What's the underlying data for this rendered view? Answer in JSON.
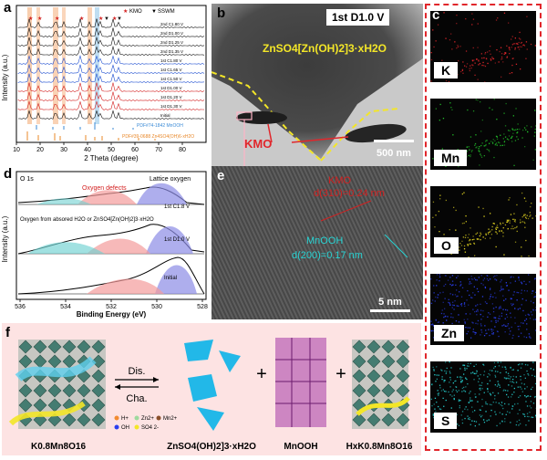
{
  "panels": {
    "a": {
      "label": "a",
      "ylabel": "Intensity (a.u.)",
      "xlabel": "2 Theta (degree)",
      "xticks": [
        "10",
        "20",
        "30",
        "40",
        "50",
        "60",
        "70",
        "80"
      ],
      "legend_kmo": "KMO",
      "legend_sswm": "SSWM",
      "curve_labels": [
        "2nd C1.80 V",
        "2nd D1.00 V",
        "2nd D1.25 V",
        "2nd D1.35 V",
        "1st C1.80 V",
        "1st C1.65 V",
        "1st C1.50 V",
        "1st D1.00 V",
        "1st D1.20 V",
        "1st D1.30 V",
        "Initial"
      ],
      "ref_mnooh": "PDF#74-1842 MnOOH",
      "ref_sswm": "PDF#39-0688 Zn4SO4(OH)6·xH2O",
      "colors": {
        "black": "#111111",
        "blue": "#1f4fd1",
        "red": "#d32020",
        "ref_blue": "#3a8ad6",
        "ref_orange": "#e8882a"
      }
    },
    "b": {
      "label": "b",
      "state": "1st D1.0 V",
      "phase": "ZnSO4[Zn(OH)2]3·xH2O",
      "kmo": "KMO",
      "scale": "500 nm"
    },
    "c": {
      "label": "c",
      "maps": [
        {
          "element": "K",
          "color": "#e0262b"
        },
        {
          "element": "Mn",
          "color": "#22c22a"
        },
        {
          "element": "O",
          "color": "#e3d520"
        },
        {
          "element": "Zn",
          "color": "#2a3ff0"
        },
        {
          "element": "S",
          "color": "#27d3d3"
        }
      ]
    },
    "d": {
      "label": "d",
      "title": "O 1s",
      "lattice": "Lattice oxygen",
      "defects": "Oxygen defects",
      "absorbed": "Oxygen from absored H2O or ZnSO4[Zn(OH)2]3·xH2O",
      "state_top": "1st C1.8 V",
      "state_mid": "1st D1.0 V",
      "state_bot": "Initial",
      "ylabel": "Intensity (a.u.)",
      "xlabel": "Binding Energy (eV)",
      "xticks": [
        "536",
        "534",
        "532",
        "530",
        "528"
      ]
    },
    "e": {
      "label": "e",
      "kmo": "KMO",
      "kmo_d": "d(310)=0.24 nm",
      "mnooh": "MnOOH",
      "mnooh_d": "d(200)=0.17 nm",
      "scale": "5 nm"
    },
    "f": {
      "label": "f",
      "dis": "Dis.",
      "cha": "Cha.",
      "legend": [
        "H+",
        "Zn2+",
        "Mn2+",
        "OH",
        "SO4 2-"
      ],
      "formula_left": "K0.8Mn8O16",
      "formula_mid": "ZnSO4(OH)2]3·xH2O",
      "formula_mnooh": "MnOOH",
      "formula_right": "HxK0.8Mn8O16",
      "plus": "+"
    }
  }
}
